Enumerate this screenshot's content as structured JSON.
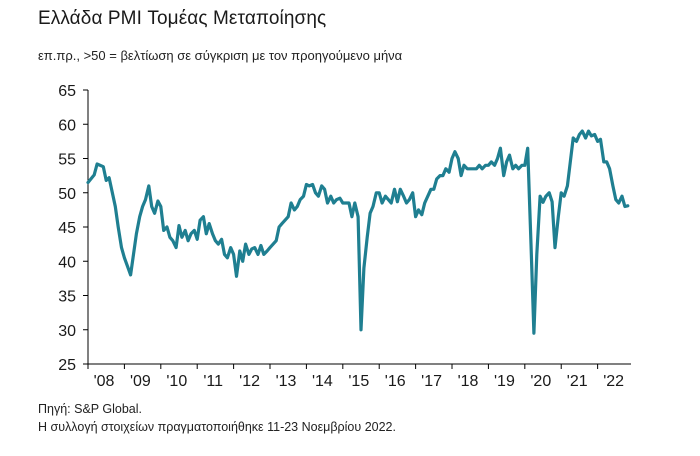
{
  "title": "Ελλάδα PMI Τομέας Μεταποίησης",
  "subtitle": "επ.πρ., >50 = βελτίωση σε σύγκριση με τον προηγούμενο μήνα",
  "footer": {
    "source": "Πηγή: S&P Global.",
    "note": "Η συλλογή στοιχείων πραγματοποιήθηκε 11-23 Νοεμβρίου 2022."
  },
  "colors": {
    "line": "#1f7f91",
    "axis": "#000000"
  },
  "chart_data": {
    "type": "line",
    "ylim": [
      25,
      65
    ],
    "yticks": [
      25,
      30,
      35,
      40,
      45,
      50,
      55,
      60,
      65
    ],
    "xlim": [
      2008,
      2022.917
    ],
    "xticks": [
      {
        "x": 2008,
        "label": "'08"
      },
      {
        "x": 2009,
        "label": "'09"
      },
      {
        "x": 2010,
        "label": "'10"
      },
      {
        "x": 2011,
        "label": "'11"
      },
      {
        "x": 2012,
        "label": "'12"
      },
      {
        "x": 2013,
        "label": "'13"
      },
      {
        "x": 2014,
        "label": "'14"
      },
      {
        "x": 2015,
        "label": "'15"
      },
      {
        "x": 2016,
        "label": "'16"
      },
      {
        "x": 2017,
        "label": "'17"
      },
      {
        "x": 2018,
        "label": "'18"
      },
      {
        "x": 2019,
        "label": "'19"
      },
      {
        "x": 2020,
        "label": "'20"
      },
      {
        "x": 2021,
        "label": "'21"
      },
      {
        "x": 2022,
        "label": "'22"
      }
    ],
    "grid": false,
    "series": [
      {
        "points": [
          [
            2008.0,
            51.5
          ],
          [
            2008.17,
            52.6
          ],
          [
            2008.25,
            54.2
          ],
          [
            2008.42,
            53.8
          ],
          [
            2008.5,
            51.8
          ],
          [
            2008.58,
            52.2
          ],
          [
            2008.75,
            48.0
          ],
          [
            2008.83,
            45.0
          ],
          [
            2008.92,
            42.0
          ],
          [
            2009.0,
            40.5
          ],
          [
            2009.17,
            38.0
          ],
          [
            2009.33,
            44.0
          ],
          [
            2009.42,
            46.5
          ],
          [
            2009.5,
            48.0
          ],
          [
            2009.58,
            49.0
          ],
          [
            2009.67,
            51.0
          ],
          [
            2009.75,
            48.0
          ],
          [
            2009.83,
            47.0
          ],
          [
            2009.92,
            48.8
          ],
          [
            2010.0,
            48.0
          ],
          [
            2010.08,
            44.5
          ],
          [
            2010.17,
            45.0
          ],
          [
            2010.25,
            43.5
          ],
          [
            2010.33,
            43.0
          ],
          [
            2010.42,
            42.0
          ],
          [
            2010.5,
            45.2
          ],
          [
            2010.58,
            43.5
          ],
          [
            2010.67,
            44.5
          ],
          [
            2010.75,
            43.0
          ],
          [
            2010.83,
            44.0
          ],
          [
            2010.92,
            44.5
          ],
          [
            2011.0,
            43.2
          ],
          [
            2011.08,
            46.0
          ],
          [
            2011.17,
            46.5
          ],
          [
            2011.25,
            44.0
          ],
          [
            2011.33,
            45.5
          ],
          [
            2011.42,
            44.0
          ],
          [
            2011.5,
            43.0
          ],
          [
            2011.58,
            42.5
          ],
          [
            2011.67,
            43.2
          ],
          [
            2011.75,
            41.0
          ],
          [
            2011.83,
            40.5
          ],
          [
            2011.92,
            42.0
          ],
          [
            2012.0,
            41.0
          ],
          [
            2012.08,
            37.8
          ],
          [
            2012.17,
            41.5
          ],
          [
            2012.25,
            40.0
          ],
          [
            2012.33,
            42.5
          ],
          [
            2012.42,
            41.0
          ],
          [
            2012.5,
            41.8
          ],
          [
            2012.58,
            42.0
          ],
          [
            2012.67,
            41.0
          ],
          [
            2012.75,
            42.3
          ],
          [
            2012.83,
            41.0
          ],
          [
            2012.92,
            41.5
          ],
          [
            2013.0,
            42.0
          ],
          [
            2013.17,
            43.0
          ],
          [
            2013.25,
            45.0
          ],
          [
            2013.33,
            45.5
          ],
          [
            2013.5,
            46.5
          ],
          [
            2013.58,
            48.5
          ],
          [
            2013.67,
            47.5
          ],
          [
            2013.75,
            48.0
          ],
          [
            2013.83,
            49.0
          ],
          [
            2013.92,
            49.5
          ],
          [
            2014.0,
            51.2
          ],
          [
            2014.08,
            51.0
          ],
          [
            2014.17,
            51.2
          ],
          [
            2014.25,
            50.0
          ],
          [
            2014.33,
            49.5
          ],
          [
            2014.42,
            51.0
          ],
          [
            2014.5,
            50.5
          ],
          [
            2014.58,
            48.5
          ],
          [
            2014.67,
            49.5
          ],
          [
            2014.75,
            48.5
          ],
          [
            2014.83,
            49.0
          ],
          [
            2014.92,
            49.2
          ],
          [
            2015.0,
            48.5
          ],
          [
            2015.08,
            48.5
          ],
          [
            2015.17,
            48.5
          ],
          [
            2015.25,
            46.5
          ],
          [
            2015.33,
            48.5
          ],
          [
            2015.42,
            46.5
          ],
          [
            2015.5,
            30.0
          ],
          [
            2015.58,
            39.0
          ],
          [
            2015.67,
            43.5
          ],
          [
            2015.75,
            47.0
          ],
          [
            2015.83,
            48.0
          ],
          [
            2015.92,
            50.0
          ],
          [
            2016.0,
            50.0
          ],
          [
            2016.08,
            48.5
          ],
          [
            2016.17,
            49.5
          ],
          [
            2016.25,
            49.0
          ],
          [
            2016.33,
            48.5
          ],
          [
            2016.42,
            50.5
          ],
          [
            2016.5,
            48.7
          ],
          [
            2016.58,
            50.5
          ],
          [
            2016.67,
            49.5
          ],
          [
            2016.75,
            48.5
          ],
          [
            2016.83,
            49.0
          ],
          [
            2016.92,
            50.0
          ],
          [
            2017.0,
            46.5
          ],
          [
            2017.08,
            47.5
          ],
          [
            2017.17,
            46.8
          ],
          [
            2017.25,
            48.5
          ],
          [
            2017.42,
            50.5
          ],
          [
            2017.5,
            50.5
          ],
          [
            2017.58,
            52.0
          ],
          [
            2017.67,
            52.5
          ],
          [
            2017.75,
            52.5
          ],
          [
            2017.83,
            53.5
          ],
          [
            2017.92,
            53.0
          ],
          [
            2018.0,
            55.0
          ],
          [
            2018.08,
            56.0
          ],
          [
            2018.17,
            55.0
          ],
          [
            2018.25,
            52.5
          ],
          [
            2018.33,
            54.0
          ],
          [
            2018.42,
            53.5
          ],
          [
            2018.5,
            53.5
          ],
          [
            2018.58,
            53.5
          ],
          [
            2018.67,
            53.5
          ],
          [
            2018.75,
            54.0
          ],
          [
            2018.83,
            53.5
          ],
          [
            2018.92,
            54.0
          ],
          [
            2019.0,
            54.0
          ],
          [
            2019.08,
            54.5
          ],
          [
            2019.17,
            54.0
          ],
          [
            2019.25,
            55.0
          ],
          [
            2019.33,
            56.5
          ],
          [
            2019.42,
            52.5
          ],
          [
            2019.5,
            54.5
          ],
          [
            2019.58,
            55.5
          ],
          [
            2019.67,
            53.5
          ],
          [
            2019.75,
            54.0
          ],
          [
            2019.83,
            53.5
          ],
          [
            2019.92,
            54.0
          ],
          [
            2020.0,
            54.0
          ],
          [
            2020.08,
            56.5
          ],
          [
            2020.17,
            42.5
          ],
          [
            2020.25,
            29.5
          ],
          [
            2020.33,
            41.0
          ],
          [
            2020.42,
            49.5
          ],
          [
            2020.5,
            48.6
          ],
          [
            2020.58,
            49.5
          ],
          [
            2020.67,
            50.0
          ],
          [
            2020.75,
            48.7
          ],
          [
            2020.83,
            42.0
          ],
          [
            2020.92,
            46.5
          ],
          [
            2021.0,
            50.0
          ],
          [
            2021.08,
            49.5
          ],
          [
            2021.17,
            51.0
          ],
          [
            2021.25,
            54.5
          ],
          [
            2021.33,
            58.0
          ],
          [
            2021.42,
            57.5
          ],
          [
            2021.5,
            58.5
          ],
          [
            2021.58,
            59.0
          ],
          [
            2021.67,
            58.0
          ],
          [
            2021.75,
            59.0
          ],
          [
            2021.83,
            58.3
          ],
          [
            2021.92,
            58.5
          ],
          [
            2022.0,
            57.5
          ],
          [
            2022.08,
            57.8
          ],
          [
            2022.17,
            54.5
          ],
          [
            2022.25,
            54.5
          ],
          [
            2022.33,
            53.5
          ],
          [
            2022.42,
            51.0
          ],
          [
            2022.5,
            49.0
          ],
          [
            2022.58,
            48.5
          ],
          [
            2022.67,
            49.5
          ],
          [
            2022.75,
            48.0
          ],
          [
            2022.83,
            48.1
          ]
        ]
      }
    ]
  }
}
